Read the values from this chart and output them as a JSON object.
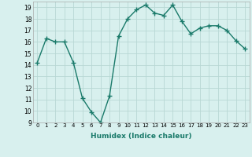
{
  "x": [
    0,
    1,
    2,
    3,
    4,
    5,
    6,
    7,
    8,
    9,
    10,
    11,
    12,
    13,
    14,
    15,
    16,
    17,
    18,
    19,
    20,
    21,
    22,
    23
  ],
  "y": [
    14.2,
    16.3,
    16.0,
    16.0,
    14.2,
    11.1,
    9.9,
    9.0,
    11.3,
    16.5,
    18.0,
    18.8,
    19.2,
    18.5,
    18.3,
    19.2,
    17.8,
    16.7,
    17.2,
    17.4,
    17.4,
    17.0,
    16.1,
    15.4
  ],
  "line_color": "#1a7a6a",
  "marker": "+",
  "marker_size": 4,
  "bg_color": "#d8f0ee",
  "grid_color": "#b8d8d4",
  "xlabel": "Humidex (Indice chaleur)",
  "ylim": [
    9,
    19.5
  ],
  "yticks": [
    9,
    10,
    11,
    12,
    13,
    14,
    15,
    16,
    17,
    18,
    19
  ],
  "xticks": [
    0,
    1,
    2,
    3,
    4,
    5,
    6,
    7,
    8,
    9,
    10,
    11,
    12,
    13,
    14,
    15,
    16,
    17,
    18,
    19,
    20,
    21,
    22,
    23
  ],
  "xlim": [
    -0.5,
    23.5
  ]
}
